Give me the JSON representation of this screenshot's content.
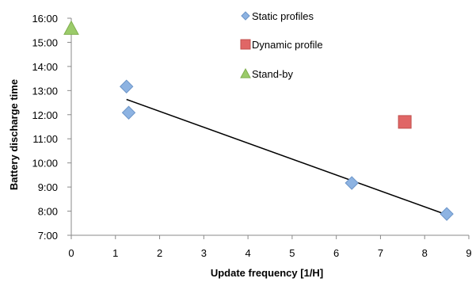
{
  "chart_data": {
    "type": "scatter",
    "title": "",
    "xlabel": "Update frequency [1/H]",
    "ylabel": "Battery discharge time",
    "xlim": [
      0,
      9
    ],
    "ylim": [
      "7:00",
      "16:00"
    ],
    "x_ticks": [
      "0",
      "1",
      "2",
      "3",
      "4",
      "5",
      "6",
      "7",
      "8",
      "9"
    ],
    "y_ticks": [
      "7:00",
      "8:00",
      "9:00",
      "10:00",
      "11:00",
      "12:00",
      "13:00",
      "14:00",
      "15:00",
      "16:00"
    ],
    "grid": false,
    "legend_position": "top-right",
    "series": [
      {
        "name": "Static profiles",
        "marker": "diamond",
        "color": "#8DB3E2",
        "points": [
          {
            "x": 1.25,
            "y": "13:10"
          },
          {
            "x": 1.3,
            "y": "12:05"
          },
          {
            "x": 6.35,
            "y": "9:10"
          },
          {
            "x": 8.5,
            "y": "7:53"
          }
        ]
      },
      {
        "name": "Dynamic profile",
        "marker": "square",
        "color": "#E06666",
        "points": [
          {
            "x": 7.55,
            "y": "11:42"
          }
        ]
      },
      {
        "name": "Stand-by",
        "marker": "triangle",
        "color": "#9BCB6A",
        "points": [
          {
            "x": 0,
            "y": "15:35"
          }
        ]
      }
    ],
    "trendline": {
      "series": "Static profiles",
      "color": "#000000",
      "from": {
        "x": 1.25,
        "y": "12:38"
      },
      "to": {
        "x": 8.5,
        "y": "7:51"
      }
    }
  }
}
